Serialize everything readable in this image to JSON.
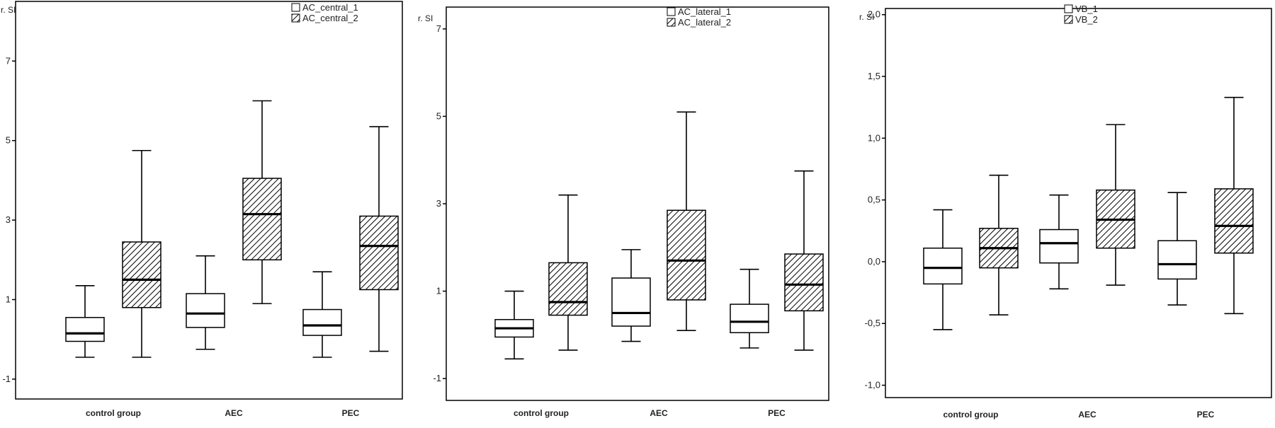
{
  "chart_data": [
    {
      "type": "boxplot",
      "ylabel": "r. SI",
      "ylim": [
        -1.5,
        8.5
      ],
      "yticks": [
        "-1",
        "1",
        "3",
        "5",
        "7"
      ],
      "categories": [
        "control group",
        "AEC",
        "PEC"
      ],
      "legend_position": "top-right",
      "series": [
        {
          "name": "AC_central_1",
          "fill": "plain",
          "boxes": [
            {
              "whisker_low": -0.45,
              "q1": -0.05,
              "median": 0.15,
              "q3": 0.55,
              "whisker_high": 1.35
            },
            {
              "whisker_low": -0.25,
              "q1": 0.3,
              "median": 0.65,
              "q3": 1.15,
              "whisker_high": 2.1
            },
            {
              "whisker_low": -0.45,
              "q1": 0.1,
              "median": 0.35,
              "q3": 0.75,
              "whisker_high": 1.7
            }
          ]
        },
        {
          "name": "AC_central_2",
          "fill": "hatched",
          "boxes": [
            {
              "whisker_low": -0.45,
              "q1": 0.8,
              "median": 1.5,
              "q3": 2.45,
              "whisker_high": 4.75
            },
            {
              "whisker_low": 0.9,
              "q1": 2.0,
              "median": 3.15,
              "q3": 4.05,
              "whisker_high": 6.0
            },
            {
              "whisker_low": -0.3,
              "q1": 1.25,
              "median": 2.35,
              "q3": 3.1,
              "whisker_high": 5.35
            }
          ]
        }
      ]
    },
    {
      "type": "boxplot",
      "ylabel": "r. SI",
      "ylim": [
        -1.5,
        7.5
      ],
      "yticks": [
        "-1",
        "1",
        "3",
        "5",
        "7"
      ],
      "categories": [
        "control group",
        "AEC",
        "PEC"
      ],
      "legend_position": "top-right",
      "series": [
        {
          "name": "AC_lateral_1",
          "fill": "plain",
          "boxes": [
            {
              "whisker_low": -0.55,
              "q1": -0.05,
              "median": 0.15,
              "q3": 0.35,
              "whisker_high": 1.0
            },
            {
              "whisker_low": -0.15,
              "q1": 0.2,
              "median": 0.5,
              "q3": 1.3,
              "whisker_high": 1.95
            },
            {
              "whisker_low": -0.3,
              "q1": 0.05,
              "median": 0.3,
              "q3": 0.7,
              "whisker_high": 1.5
            }
          ]
        },
        {
          "name": "AC_lateral_2",
          "fill": "hatched",
          "boxes": [
            {
              "whisker_low": -0.35,
              "q1": 0.45,
              "median": 0.75,
              "q3": 1.65,
              "whisker_high": 3.2
            },
            {
              "whisker_low": 0.1,
              "q1": 0.8,
              "median": 1.7,
              "q3": 2.85,
              "whisker_high": 5.1
            },
            {
              "whisker_low": -0.35,
              "q1": 0.55,
              "median": 1.15,
              "q3": 1.85,
              "whisker_high": 3.75
            }
          ]
        }
      ]
    },
    {
      "type": "boxplot",
      "ylabel": "r. SI",
      "ylim": [
        -1.1,
        2.05
      ],
      "yticks": [
        "-1,0",
        "-0,5",
        "0,0",
        "0,5",
        "1,0",
        "1,5",
        "2,0"
      ],
      "categories": [
        "control group",
        "AEC",
        "PEC"
      ],
      "legend_position": "top-right",
      "series": [
        {
          "name": "VB_1",
          "fill": "plain",
          "boxes": [
            {
              "whisker_low": -0.55,
              "q1": -0.18,
              "median": -0.05,
              "q3": 0.11,
              "whisker_high": 0.42
            },
            {
              "whisker_low": -0.22,
              "q1": -0.01,
              "median": 0.15,
              "q3": 0.26,
              "whisker_high": 0.54
            },
            {
              "whisker_low": -0.35,
              "q1": -0.14,
              "median": -0.02,
              "q3": 0.17,
              "whisker_high": 0.56
            }
          ]
        },
        {
          "name": "VB_2",
          "fill": "hatched",
          "boxes": [
            {
              "whisker_low": -0.43,
              "q1": -0.05,
              "median": 0.11,
              "q3": 0.27,
              "whisker_high": 0.7
            },
            {
              "whisker_low": -0.19,
              "q1": 0.11,
              "median": 0.34,
              "q3": 0.58,
              "whisker_high": 1.11
            },
            {
              "whisker_low": -0.42,
              "q1": 0.07,
              "median": 0.29,
              "q3": 0.59,
              "whisker_high": 1.33
            }
          ]
        }
      ]
    }
  ]
}
